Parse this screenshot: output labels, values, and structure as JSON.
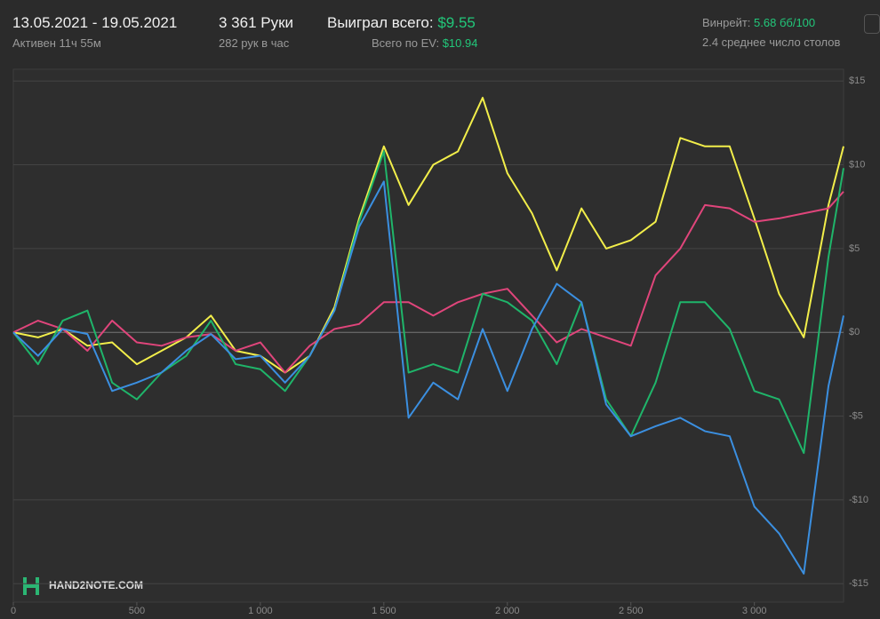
{
  "header": {
    "date_range": "13.05.2021 - 19.05.2021",
    "active": "Активен 11ч 55м",
    "hands": "3 361 Руки",
    "hands_per_hour": "282 рук в час",
    "won_label": "Выиграл всего:",
    "won_value": "$9.55",
    "ev_label": "Всего по EV:",
    "ev_value": "$10.94",
    "winrate_label": "Винрейт:",
    "winrate_value": "5.68 бб/100",
    "tables": "2.4 среднее число столов"
  },
  "logo": "HAND2NOTE.COM",
  "chart_data": {
    "type": "line",
    "x": [
      0,
      100,
      200,
      300,
      400,
      500,
      600,
      700,
      800,
      900,
      1000,
      1100,
      1200,
      1300,
      1400,
      1500,
      1600,
      1700,
      1800,
      1900,
      2000,
      2100,
      2200,
      2300,
      2400,
      2500,
      2600,
      2700,
      2800,
      2900,
      3000,
      3100,
      3200,
      3300,
      3361
    ],
    "series": [
      {
        "color": "#f2ee4a",
        "values": [
          0,
          -0.3,
          0.2,
          -0.8,
          -0.6,
          -1.9,
          -1.1,
          -0.3,
          1,
          -1.1,
          -1.4,
          -2.4,
          -1.4,
          1.5,
          6.8,
          11.1,
          7.6,
          10,
          10.8,
          14,
          9.5,
          7.1,
          3.7,
          7.4,
          5,
          5.5,
          6.6,
          11.6,
          11.1,
          11.1,
          6.8,
          2.3,
          -0.3,
          7.6,
          11.1
        ]
      },
      {
        "color": "#e0457b",
        "values": [
          0,
          0.7,
          0.2,
          -1.1,
          0.7,
          -0.6,
          -0.8,
          -0.3,
          -0.1,
          -1.1,
          -0.6,
          -2.4,
          -0.8,
          0.2,
          0.5,
          1.8,
          1.8,
          1,
          1.8,
          2.3,
          2.6,
          1,
          -0.6,
          0.2,
          -0.3,
          -0.8,
          3.4,
          5,
          7.6,
          7.4,
          6.6,
          6.8,
          7.1,
          7.4,
          8.4
        ]
      },
      {
        "color": "#1fb56a",
        "values": [
          0,
          -1.9,
          0.7,
          1.3,
          -3,
          -4,
          -2.4,
          -1.4,
          0.7,
          -1.9,
          -2.2,
          -3.5,
          -1.4,
          1.3,
          6.6,
          10.8,
          -2.4,
          -1.9,
          -2.4,
          2.3,
          1.8,
          0.7,
          -1.9,
          1.8,
          -4,
          -6.2,
          -3,
          1.8,
          1.8,
          0.2,
          -3.5,
          -4,
          -7.2,
          4.5,
          9.8
        ]
      },
      {
        "color": "#3b8fe0",
        "values": [
          0,
          -1.4,
          0.2,
          -0.1,
          -3.5,
          -3,
          -2.4,
          -1.1,
          -0.1,
          -1.6,
          -1.4,
          -3,
          -1.4,
          1.3,
          6.3,
          9,
          -5.1,
          -3,
          -4,
          0.2,
          -3.5,
          0.2,
          2.9,
          1.8,
          -4.3,
          -6.2,
          -5.6,
          -5.1,
          -5.9,
          -6.2,
          -10.4,
          -12,
          -14.4,
          -3.2,
          1
        ]
      }
    ],
    "xlim": [
      0,
      3361
    ],
    "ylim": [
      -16.1,
      15.7
    ],
    "xticks": [
      0,
      500,
      {
        "value": 1000,
        "label": "1 000"
      },
      {
        "value": 1500,
        "label": "1 500"
      },
      {
        "value": 2000,
        "label": "2 000"
      },
      {
        "value": 2500,
        "label": "2 500"
      },
      {
        "value": 3000,
        "label": "3 000"
      }
    ],
    "yticks": [
      {
        "value": 15,
        "label": "$15"
      },
      {
        "value": 10,
        "label": "$10"
      },
      {
        "value": 5,
        "label": "$5"
      },
      {
        "value": 0,
        "label": "$0"
      },
      {
        "value": -5,
        "label": "-$5"
      },
      {
        "value": -10,
        "label": "-$10"
      },
      {
        "value": -15,
        "label": "-$15"
      }
    ],
    "grid": true
  }
}
